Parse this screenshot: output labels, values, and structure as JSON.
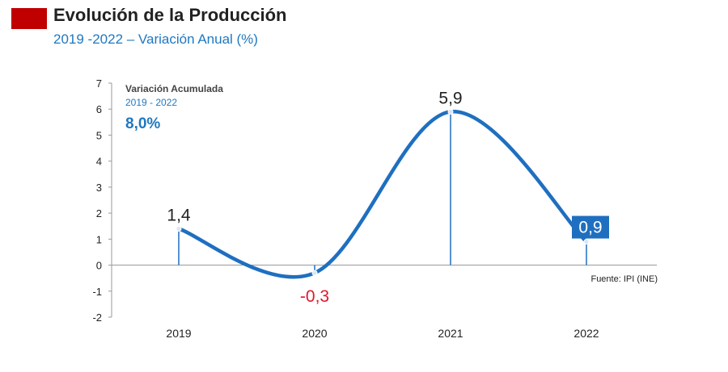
{
  "header": {
    "title": "Evolución de la Producción",
    "subtitle": "2019 -2022  – Variación Anual (%)",
    "accent_color": "#c00000"
  },
  "chart_data": {
    "type": "line",
    "smooth": true,
    "categories": [
      "2019",
      "2020",
      "2021",
      "2022"
    ],
    "series": [
      {
        "values": [
          1.4,
          -0.3,
          5.9,
          0.9
        ],
        "labels": [
          "1,4",
          "-0,3",
          "5,9",
          "0,9"
        ],
        "color": "#1f6fc0"
      }
    ],
    "ylim": [
      -2,
      7
    ],
    "yticks": [
      7,
      6,
      5,
      4,
      3,
      2,
      1,
      0,
      -1,
      -2
    ],
    "grid": false,
    "annotation": {
      "title": "Variación Acumulada",
      "range": "2019 - 2022",
      "value": "8,0%"
    },
    "source": "Fuente: IPI (INE)"
  }
}
